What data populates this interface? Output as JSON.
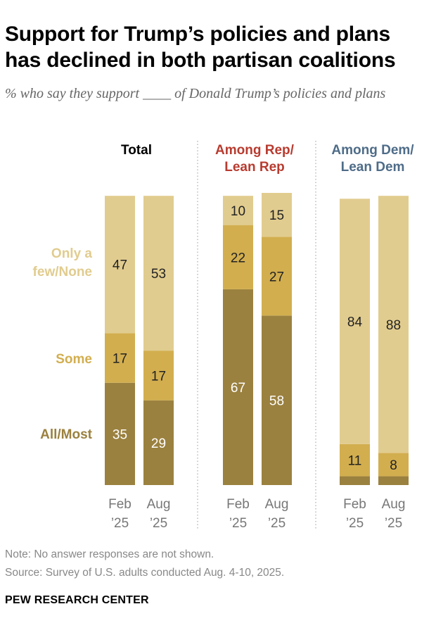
{
  "header": {
    "title": "Support for Trump’s policies and plans has declined in both partisan coalitions",
    "subtitle": "% who say they support ____ of Donald Trump’s policies and plans"
  },
  "colors": {
    "all_most": "#9b813f",
    "some": "#d2ae4f",
    "few_none": "#e1cc8f",
    "label_all_most": "#9b813f",
    "label_some": "#d2ae4f",
    "label_few_none": "#e1cc8f",
    "rep": "#b83b2f",
    "dem": "#4e6c88",
    "axis_text": "#777777",
    "divider": "#9a9a9a"
  },
  "chart_data": {
    "type": "stacked_bar",
    "ylim": [
      0,
      100
    ],
    "stack_order": [
      "All/Most",
      "Some",
      "Only a few/None"
    ],
    "segment_labels": [
      "All/Most",
      "Some",
      "Only a\nfew/None"
    ],
    "groups": [
      {
        "name": "Total",
        "bars": [
          {
            "x": "Feb\n’25",
            "values": [
              35,
              17,
              47
            ]
          },
          {
            "x": "Aug\n’25",
            "values": [
              29,
              17,
              53
            ]
          }
        ]
      },
      {
        "name": "Among Rep/\nLean Rep",
        "bars": [
          {
            "x": "Feb\n’25",
            "values": [
              67,
              22,
              10
            ]
          },
          {
            "x": "Aug\n’25",
            "values": [
              58,
              27,
              15
            ]
          }
        ]
      },
      {
        "name": "Among Dem/\nLean Dem",
        "bars": [
          {
            "x": "Feb\n’25",
            "values": [
              3,
              11,
              84
            ]
          },
          {
            "x": "Aug\n’25",
            "values": [
              3,
              8,
              88
            ]
          }
        ]
      }
    ],
    "hidden_value_labels": [
      [
        2,
        0,
        0
      ],
      [
        2,
        1,
        0
      ]
    ]
  },
  "footer": {
    "note": "Note: No answer responses are not shown.",
    "source": "Source: Survey of U.S. adults conducted Aug. 4-10, 2025.",
    "brand": "PEW RESEARCH CENTER"
  }
}
